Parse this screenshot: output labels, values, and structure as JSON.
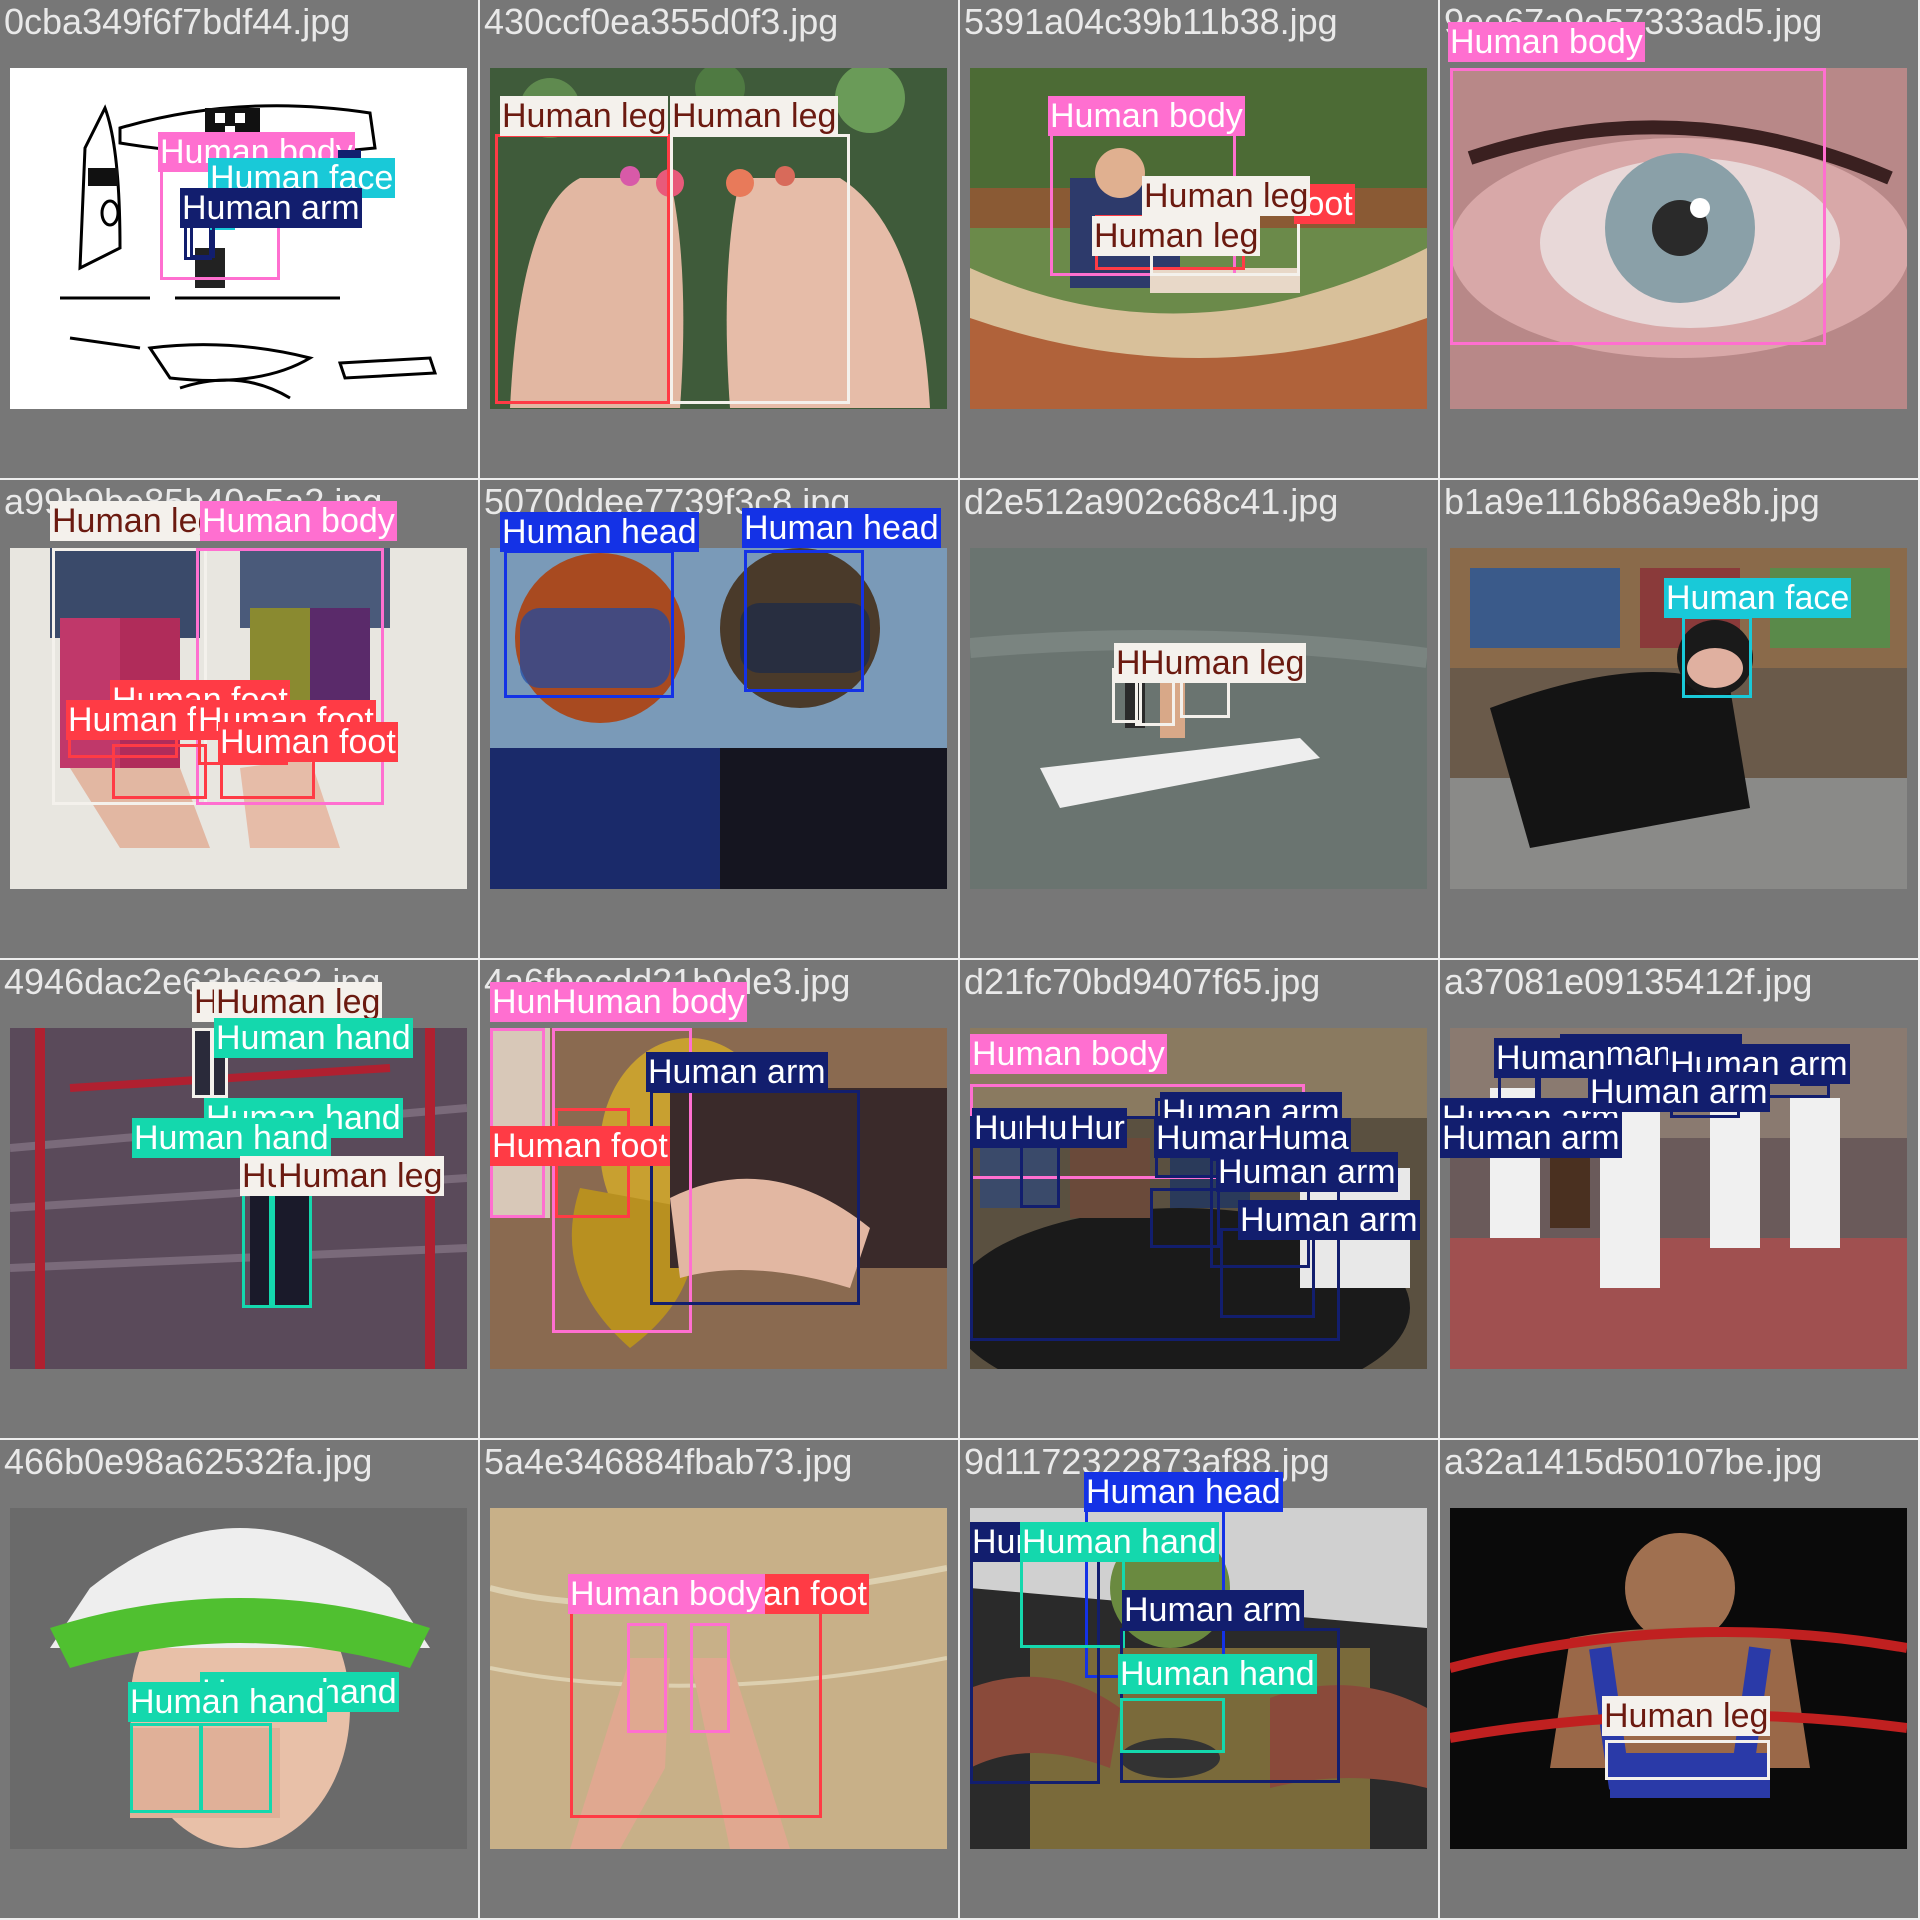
{
  "colors": {
    "Human body": "#ff6fd0",
    "Human face": "#19c9d8",
    "Human arm": "#121e6e",
    "Human leg": "#f4f1ec",
    "Human foot": "#ff3b45",
    "Human head": "#1432e6",
    "Human hand": "#14d8ad"
  },
  "cells": [
    {
      "filename": "0cba349f6f7bdf44.jpg",
      "scene": "drawing",
      "labels": [
        {
          "cls": "Human body",
          "text": "Human body"
        },
        {
          "cls": "Human arm",
          "text": "n"
        },
        {
          "cls": "Human face",
          "text": "Human face"
        },
        {
          "cls": "Human arm",
          "text": "Human arm"
        }
      ]
    },
    {
      "filename": "430ccf0ea355d0f3.jpg",
      "scene": "feet",
      "labels": [
        {
          "cls": "Human foot",
          "text": "t"
        },
        {
          "cls": "Human leg",
          "text": "Human leg"
        },
        {
          "cls": "Human foot",
          "text": "t"
        },
        {
          "cls": "Human leg",
          "text": "Human leg"
        }
      ]
    },
    {
      "filename": "5391a04c39b11b38.jpg",
      "scene": "hammock",
      "labels": [
        {
          "cls": "Human body",
          "text": "Human body"
        },
        {
          "cls": "Human foot",
          "text": "foot"
        },
        {
          "cls": "Human leg",
          "text": "Human leg"
        },
        {
          "cls": "Human leg",
          "text": "Human leg"
        }
      ]
    },
    {
      "filename": "9ee67a9e57333ad5.jpg",
      "scene": "eye",
      "labels": [
        {
          "cls": "Human body",
          "text": "Human body"
        }
      ]
    },
    {
      "filename": "a99b9be85b40e5a2.jpg",
      "scene": "legwarmers",
      "labels": [
        {
          "cls": "Human leg",
          "text": "Human leg"
        },
        {
          "cls": "Human body",
          "text": "Human body"
        },
        {
          "cls": "Human foot",
          "text": "Human foot"
        },
        {
          "cls": "Human foot",
          "text": "Human foot"
        },
        {
          "cls": "Human foot",
          "text": "Human foot"
        },
        {
          "cls": "Human foot",
          "text": "Human foot"
        }
      ]
    },
    {
      "filename": "5070ddee7739f3c8.jpg",
      "scene": "divers",
      "labels": [
        {
          "cls": "Human head",
          "text": "Human head"
        },
        {
          "cls": "Human head",
          "text": "Human head"
        }
      ]
    },
    {
      "filename": "d2e512a902c68c41.jpg",
      "scene": "jetski",
      "labels": [
        {
          "cls": "Human leg",
          "text": "H"
        },
        {
          "cls": "Human leg",
          "text": "Human leg"
        }
      ]
    },
    {
      "filename": "b1a9e116b86a9e8b.jpg",
      "scene": "catsuit",
      "labels": [
        {
          "cls": "Human face",
          "text": "Human face"
        }
      ]
    },
    {
      "filename": "4946dac2e63b6682.jpg",
      "scene": "gym",
      "labels": [
        {
          "cls": "Human leg",
          "text": "H"
        },
        {
          "cls": "Human leg",
          "text": "Human leg"
        },
        {
          "cls": "Human hand",
          "text": "Human hand"
        },
        {
          "cls": "Human hand",
          "text": "Human hand"
        },
        {
          "cls": "Human hand",
          "text": "Human hand"
        },
        {
          "cls": "Human leg",
          "text": "Hu"
        },
        {
          "cls": "Human leg",
          "text": "Human leg"
        }
      ]
    },
    {
      "filename": "4a6fbecdd21b9de3.jpg",
      "scene": "sax",
      "labels": [
        {
          "cls": "Human body",
          "text": "Hum"
        },
        {
          "cls": "Human body",
          "text": "Human body"
        },
        {
          "cls": "Human arm",
          "text": "Human arm"
        },
        {
          "cls": "Human foot",
          "text": "Human foot"
        }
      ]
    },
    {
      "filename": "d21fc70bd9407f65.jpg",
      "scene": "meeting",
      "labels": [
        {
          "cls": "Human body",
          "text": "Human body"
        },
        {
          "cls": "Human arm",
          "text": "Human arm"
        },
        {
          "cls": "Human arm",
          "text": "Hun"
        },
        {
          "cls": "Human arm",
          "text": "Hu"
        },
        {
          "cls": "Human arm",
          "text": "Hur"
        },
        {
          "cls": "Human arm",
          "text": "Human"
        },
        {
          "cls": "Human arm",
          "text": "Huma"
        },
        {
          "cls": "Human arm",
          "text": "Human arm"
        },
        {
          "cls": "Human arm",
          "text": "Human arm"
        }
      ]
    },
    {
      "filename": "a37081e09135412f.jpg",
      "scene": "capoeira",
      "labels": [
        {
          "cls": "Human arm",
          "text": "Human arm"
        },
        {
          "cls": "Human arm",
          "text": "Human arm"
        },
        {
          "cls": "Human arm",
          "text": "Human arm"
        },
        {
          "cls": "Human arm",
          "text": "Human arm"
        },
        {
          "cls": "Human arm",
          "text": "Human arm"
        },
        {
          "cls": "Human arm",
          "text": "Human"
        }
      ]
    },
    {
      "filename": "466b0e98a62532fa.jpg",
      "scene": "girlhat",
      "labels": [
        {
          "cls": "Human hand",
          "text": "Human hand"
        },
        {
          "cls": "Human hand",
          "text": "Human hand"
        }
      ]
    },
    {
      "filename": "5a4e346884fbab73.jpg",
      "scene": "sand",
      "labels": [
        {
          "cls": "Human foot",
          "text": "nan foot"
        },
        {
          "cls": "Human body",
          "text": "Human body"
        }
      ]
    },
    {
      "filename": "9d1172322873af88.jpg",
      "scene": "artwork",
      "labels": [
        {
          "cls": "Human head",
          "text": "Human head"
        },
        {
          "cls": "Human arm",
          "text": "Hur"
        },
        {
          "cls": "Human hand",
          "text": "Human hand"
        },
        {
          "cls": "Human arm",
          "text": "Human arm"
        },
        {
          "cls": "Human hand",
          "text": "Human hand"
        }
      ]
    },
    {
      "filename": "a32a1415d50107be.jpg",
      "scene": "wrestler",
      "labels": [
        {
          "cls": "Human leg",
          "text": "Human leg"
        }
      ]
    }
  ]
}
